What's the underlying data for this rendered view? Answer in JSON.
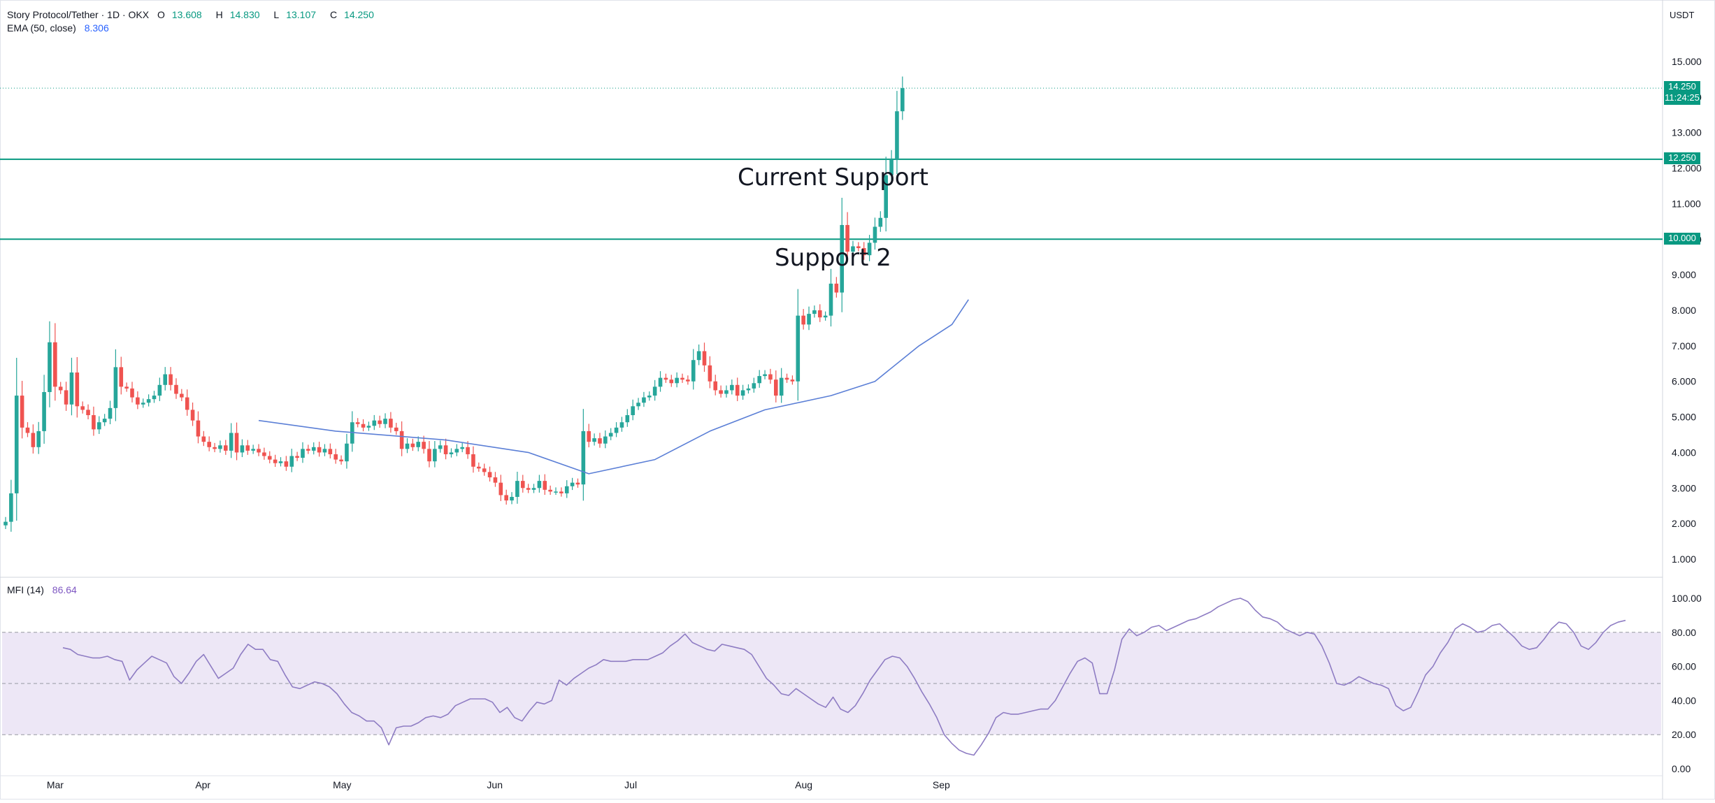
{
  "legend": {
    "title": "Story Protocol/Tether · 1D · OKX",
    "o_label": "O",
    "o": "13.608",
    "h_label": "H",
    "h": "14.830",
    "l_label": "L",
    "l": "13.107",
    "c_label": "C",
    "c": "14.250",
    "ema_label": "EMA (50, close)",
    "ema_value": "8.306",
    "mfi_label": "MFI (14)",
    "mfi_value": "86.64"
  },
  "currency": "USDT",
  "annotations": {
    "current_support": "Current Support",
    "support_2": "Support 2"
  },
  "price_tags": {
    "last_price": "14.250",
    "countdown": "11:24:25",
    "level_1": "12.250",
    "level_2": "10.000"
  },
  "colors": {
    "up": "#26a69a",
    "down": "#ef5350",
    "ema": "#5b7fd6",
    "mfi": "#8e7cc3",
    "mfi_band": "#ede7f6",
    "support_line": "#089981",
    "last_price": "#089981"
  },
  "chart_data": [
    {
      "type": "candlestick",
      "title": "Story Protocol/Tether · 1D · OKX",
      "ylabel": "USDT",
      "ylim": [
        0.7,
        15.6
      ],
      "x_ticks": [
        "Mar",
        "Apr",
        "May",
        "Jun",
        "Jul",
        "Aug",
        "Sep"
      ],
      "y_ticks": [
        1.0,
        2.0,
        3.0,
        4.0,
        5.0,
        6.0,
        7.0,
        8.0,
        9.0,
        10.0,
        11.0,
        12.0,
        13.0,
        14.0,
        15.0
      ],
      "support_levels": [
        12.25,
        10.0
      ],
      "last_price": 14.25,
      "close": [
        2.05,
        2.85,
        5.6,
        4.7,
        4.55,
        4.15,
        4.6,
        5.7,
        7.1,
        5.85,
        5.75,
        5.35,
        6.25,
        5.3,
        5.2,
        5.05,
        4.65,
        4.85,
        4.95,
        5.25,
        6.4,
        5.85,
        5.8,
        5.55,
        5.35,
        5.4,
        5.5,
        5.6,
        5.9,
        6.2,
        5.9,
        5.65,
        5.55,
        5.2,
        4.9,
        4.45,
        4.3,
        4.15,
        4.1,
        4.2,
        4.05,
        4.55,
        4.0,
        4.2,
        4.05,
        4.1,
        4.0,
        3.9,
        3.8,
        3.7,
        3.75,
        3.6,
        3.9,
        3.85,
        4.1,
        4.05,
        4.15,
        4.0,
        4.1,
        3.95,
        3.8,
        3.75,
        4.25,
        4.85,
        4.8,
        4.7,
        4.75,
        4.9,
        4.8,
        4.95,
        4.7,
        4.6,
        4.1,
        4.25,
        4.15,
        4.3,
        4.1,
        3.75,
        4.1,
        4.2,
        3.95,
        4.0,
        4.1,
        4.15,
        3.95,
        3.6,
        3.55,
        3.45,
        3.3,
        3.15,
        2.8,
        2.65,
        2.75,
        3.2,
        3.0,
        2.95,
        3.0,
        3.2,
        2.95,
        2.9,
        2.9,
        2.85,
        3.05,
        3.15,
        3.1,
        4.6,
        4.3,
        4.4,
        4.25,
        4.45,
        4.55,
        4.7,
        4.85,
        5.05,
        5.3,
        5.4,
        5.55,
        5.6,
        5.85,
        6.1,
        6.05,
        5.95,
        6.1,
        6.05,
        6.0,
        6.6,
        6.85,
        6.45,
        6.0,
        5.75,
        5.65,
        5.75,
        5.9,
        5.6,
        5.75,
        5.8,
        5.95,
        6.15,
        6.2,
        6.05,
        5.6,
        6.1,
        6.05,
        6.0,
        7.85,
        7.6,
        7.9,
        8.0,
        7.8,
        7.85,
        8.75,
        8.5,
        10.4,
        9.65,
        9.8,
        9.75,
        9.55,
        9.9,
        10.35,
        10.6,
        11.8,
        12.25,
        13.6,
        14.25
      ],
      "ema_50": [
        {
          "i": 46,
          "v": 4.9
        },
        {
          "i": 60,
          "v": 4.6
        },
        {
          "i": 80,
          "v": 4.35
        },
        {
          "i": 95,
          "v": 4.0
        },
        {
          "i": 106,
          "v": 3.4
        },
        {
          "i": 118,
          "v": 3.8
        },
        {
          "i": 128,
          "v": 4.6
        },
        {
          "i": 138,
          "v": 5.2
        },
        {
          "i": 150,
          "v": 5.6
        },
        {
          "i": 158,
          "v": 6.0
        },
        {
          "i": 166,
          "v": 7.0
        },
        {
          "i": 172,
          "v": 7.6
        },
        {
          "i": 175,
          "v": 8.3
        }
      ]
    },
    {
      "type": "line",
      "title": "MFI (14)",
      "ylim": [
        0,
        100
      ],
      "y_ticks": [
        0.0,
        20.0,
        40.0,
        60.0,
        80.0,
        100.0
      ],
      "bands": [
        20,
        50,
        80
      ],
      "last_value": 86.64,
      "values": [
        71,
        70,
        67,
        66,
        65,
        65,
        66,
        64,
        63,
        52,
        58,
        62,
        66,
        64,
        62,
        54,
        50,
        56,
        63,
        67,
        60,
        53,
        56,
        59,
        67,
        73,
        70,
        70,
        64,
        63,
        55,
        48,
        47,
        49,
        51,
        50,
        48,
        44,
        38,
        33,
        31,
        28,
        28,
        24,
        14,
        24,
        25,
        25,
        27,
        30,
        31,
        30,
        32,
        37,
        39,
        41,
        41,
        41,
        39,
        33,
        36,
        30,
        28,
        34,
        39,
        38,
        40,
        52,
        49,
        53,
        56,
        59,
        61,
        64,
        63,
        63,
        63,
        64,
        64,
        64,
        66,
        68,
        72,
        75,
        79,
        74,
        72,
        70,
        69,
        73,
        72,
        71,
        70,
        67,
        60,
        53,
        49,
        44,
        43,
        47,
        44,
        41,
        38,
        36,
        42,
        35,
        33,
        37,
        44,
        52,
        58,
        64,
        66,
        65,
        60,
        53,
        45,
        38,
        30,
        20,
        15,
        11,
        9,
        8,
        14,
        21,
        30,
        33,
        32,
        32,
        33,
        34,
        35,
        35,
        40,
        48,
        56,
        63,
        65,
        62,
        44,
        44,
        58,
        76,
        82,
        78,
        80,
        83,
        84,
        81,
        83,
        85,
        87,
        88,
        90,
        92,
        95,
        97,
        99,
        100,
        98,
        93,
        89,
        88,
        86,
        82,
        80,
        78,
        80,
        79,
        72,
        62,
        50,
        49,
        51,
        54,
        52,
        50,
        49,
        47,
        37,
        34,
        36,
        45,
        55,
        60,
        68,
        74,
        82,
        85,
        83,
        80,
        81,
        84,
        85,
        81,
        77,
        72,
        70,
        71,
        76,
        82,
        86,
        85,
        80,
        72,
        70,
        74,
        80,
        84,
        86,
        87
      ]
    }
  ]
}
